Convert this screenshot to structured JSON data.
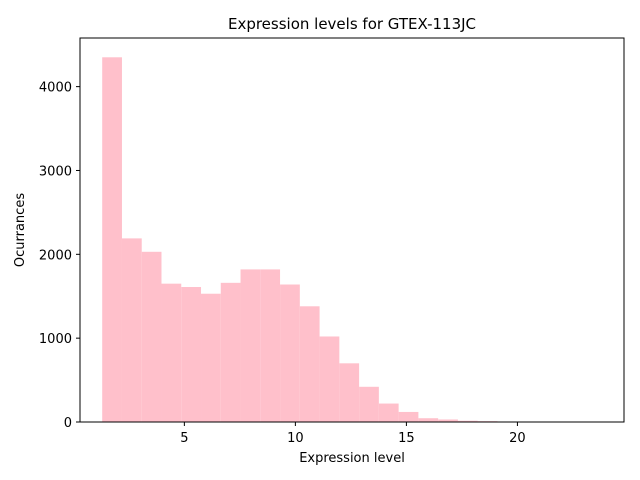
{
  "chart_data": {
    "type": "bar",
    "title": "Expression levels for GTEX-113JC",
    "xlabel": "Expression level",
    "ylabel": "Ocurrances",
    "xlim": [
      0.3,
      24.8
    ],
    "ylim": [
      0,
      4580
    ],
    "xticks": [
      5,
      10,
      15,
      20
    ],
    "yticks": [
      0,
      1000,
      2000,
      3000,
      4000
    ],
    "bar_color": "#ffc0cb",
    "bin_edges": [
      1.3,
      2.19,
      3.08,
      3.97,
      4.86,
      5.75,
      6.64,
      7.53,
      8.42,
      9.31,
      10.2,
      11.09,
      11.98,
      12.87,
      13.76,
      14.65,
      15.54,
      16.43,
      17.32,
      18.21,
      19.1,
      19.99,
      20.88,
      21.77,
      22.66,
      23.55
    ],
    "values": [
      4350,
      2190,
      2030,
      1650,
      1610,
      1530,
      1660,
      1820,
      1820,
      1640,
      1380,
      1020,
      700,
      420,
      220,
      120,
      45,
      30,
      15,
      10,
      6,
      5,
      4,
      3,
      3
    ],
    "grid": false,
    "legend": "none"
  }
}
